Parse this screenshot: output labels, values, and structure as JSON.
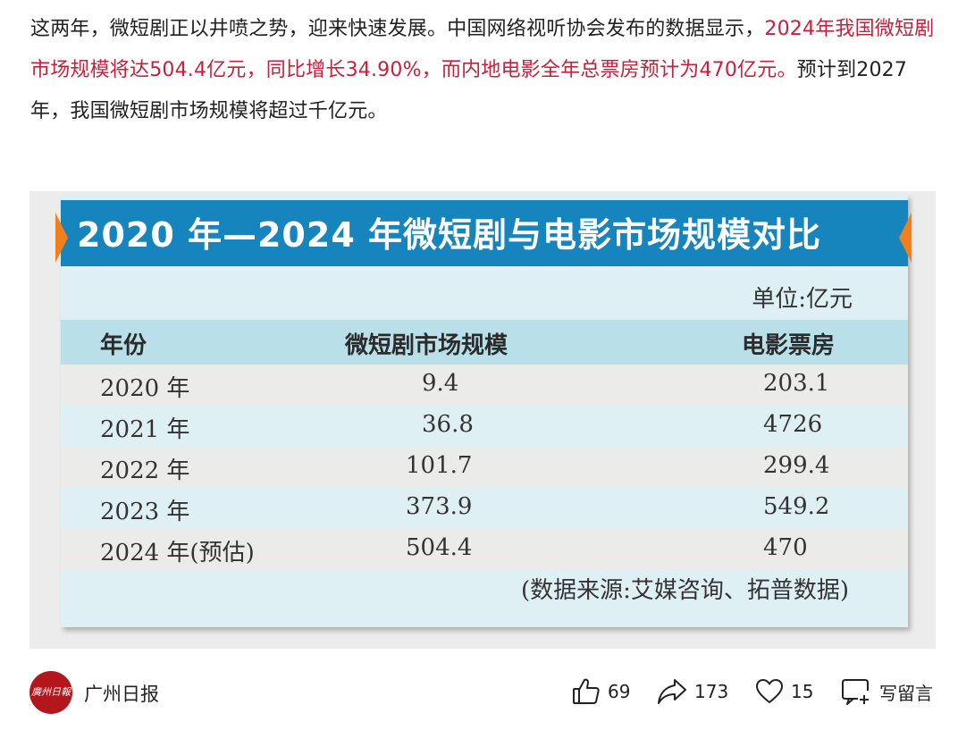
{
  "article": {
    "segment1": "这两年，微短剧正以井喷之势，迎来快速发展。中国网络视听协会发布的数据显示，",
    "segment2_highlight": "2024年我国微短剧市场规模将达504.4亿元，同比增长34.90%，而内地电影全年总票房预计为470亿元。",
    "segment3": "预计到2027年，我国微短剧市场规模将超过千亿元。",
    "highlight_color": "#c8203a"
  },
  "infographic": {
    "title": "2020 年—2024 年微短剧与电影市场规模对比",
    "unit": "单位:亿元",
    "headers": [
      "年份",
      "微短剧市场规模",
      "电影票房"
    ],
    "rows": [
      {
        "year": "2020 年",
        "micro_drama": "9.4",
        "box_office": "203.1"
      },
      {
        "year": "2021 年",
        "micro_drama": "36.8",
        "box_office": "4726"
      },
      {
        "year": "2022 年",
        "micro_drama": "101.7",
        "box_office": "299.4"
      },
      {
        "year": "2023 年",
        "micro_drama": "373.9",
        "box_office": "549.2"
      },
      {
        "year": "2024 年(预估)",
        "micro_drama": "504.4",
        "box_office": "470"
      }
    ],
    "source": "(数据来源:艾媒咨询、拓普数据)",
    "title_bar_color": "#1785bd",
    "accent_color": "#f07f1e"
  },
  "chart_data": {
    "type": "table",
    "title": "2020 年—2024 年微短剧与电影市场规模对比",
    "unit": "单位:亿元",
    "columns": [
      "年份",
      "微短剧市场规模",
      "电影票房"
    ],
    "rows": [
      [
        "2020 年",
        9.4,
        203.1
      ],
      [
        "2021 年",
        36.8,
        4726
      ],
      [
        "2022 年",
        101.7,
        299.4
      ],
      [
        "2023 年",
        373.9,
        549.2
      ],
      [
        "2024 年(预估)",
        504.4,
        470
      ]
    ],
    "source": "(数据来源:艾媒咨询、拓普数据)"
  },
  "footer": {
    "avatar_text": "廣州日報",
    "author": "广州日报",
    "like_count": "69",
    "share_count": "173",
    "favorite_count": "15",
    "comment_label": "写留言",
    "icons": {
      "like": "thumbs-up-icon",
      "share": "share-arrow-icon",
      "favorite": "heart-icon",
      "comment": "comment-icon"
    }
  }
}
